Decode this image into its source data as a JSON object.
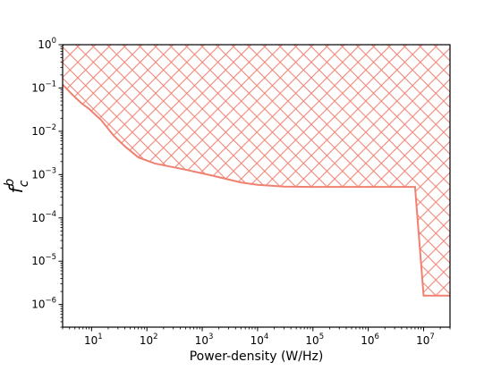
{
  "chart_data": {
    "type": "area",
    "title": "",
    "xlabel": "Power-density (W/Hz)",
    "ylabel": "f_c^b",
    "ylabel_base": "f",
    "ylabel_sub": "c",
    "ylabel_sup": "b",
    "xscale": "log",
    "yscale": "log",
    "xlim": [
      3,
      30000000
    ],
    "ylim": [
      3e-07,
      1
    ],
    "grid": false,
    "legend": "none",
    "x_ticks": [
      {
        "value": 10,
        "base": "10",
        "exp": "1"
      },
      {
        "value": 100,
        "base": "10",
        "exp": "2"
      },
      {
        "value": 1000,
        "base": "10",
        "exp": "3"
      },
      {
        "value": 10000,
        "base": "10",
        "exp": "4"
      },
      {
        "value": 100000,
        "base": "10",
        "exp": "5"
      },
      {
        "value": 1000000,
        "base": "10",
        "exp": "6"
      },
      {
        "value": 10000000,
        "base": "10",
        "exp": "7"
      }
    ],
    "y_ticks": [
      {
        "value": 1,
        "base": "10",
        "exp": "0"
      },
      {
        "value": 0.1,
        "base": "10",
        "exp": "−1"
      },
      {
        "value": 0.01,
        "base": "10",
        "exp": "−2"
      },
      {
        "value": 0.001,
        "base": "10",
        "exp": "−3"
      },
      {
        "value": 0.0001,
        "base": "10",
        "exp": "−4"
      },
      {
        "value": 1e-05,
        "base": "10",
        "exp": "−5"
      },
      {
        "value": 1e-06,
        "base": "10",
        "exp": "−6"
      }
    ],
    "series": [
      {
        "color": "#f08070",
        "fill": "hatch-above",
        "x": [
          3,
          4.5,
          6.5,
          9,
          15,
          25,
          40,
          70,
          140,
          500,
          1500,
          5000,
          10000,
          30000,
          100000,
          1000000,
          7000000,
          10000000,
          30000000
        ],
        "y": [
          0.12,
          0.07,
          0.045,
          0.033,
          0.018,
          0.008,
          0.0045,
          0.0025,
          0.0018,
          0.0013,
          0.00095,
          0.00066,
          0.00058,
          0.00053,
          0.00052,
          0.00052,
          0.00052,
          1.6e-06,
          1.6e-06
        ]
      }
    ]
  }
}
